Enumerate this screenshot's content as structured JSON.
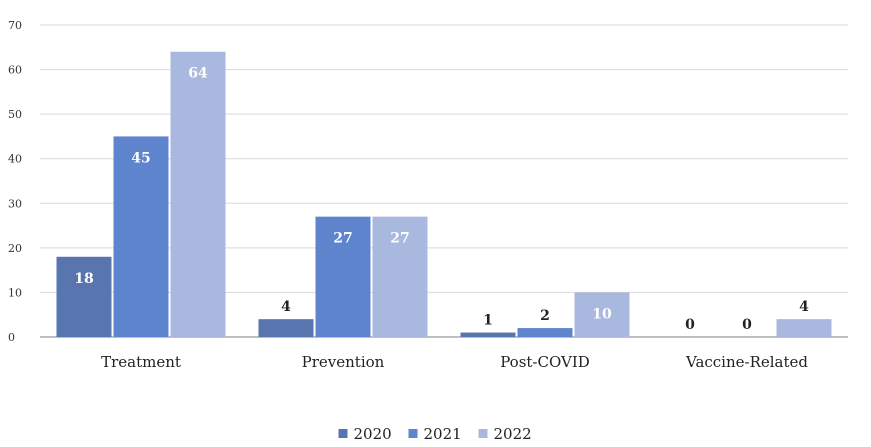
{
  "chart_data": {
    "type": "bar",
    "title": "",
    "xlabel": "",
    "ylabel": "",
    "categories": [
      "Treatment",
      "Prevention",
      "Post-COVID",
      "Vaccine-Related"
    ],
    "series": [
      {
        "name": "2020",
        "values": [
          18,
          4,
          1,
          0
        ],
        "color": "#5875b0"
      },
      {
        "name": "2021",
        "values": [
          45,
          27,
          2,
          0
        ],
        "color": "#5e84cd"
      },
      {
        "name": "2022",
        "values": [
          64,
          27,
          10,
          4
        ],
        "color": "#a8b8de"
      }
    ],
    "ylim": [
      0,
      70
    ],
    "yticks": [
      0,
      10,
      20,
      30,
      40,
      50,
      60,
      70
    ],
    "grid": true,
    "legend": "bottom",
    "data_labels": true
  }
}
